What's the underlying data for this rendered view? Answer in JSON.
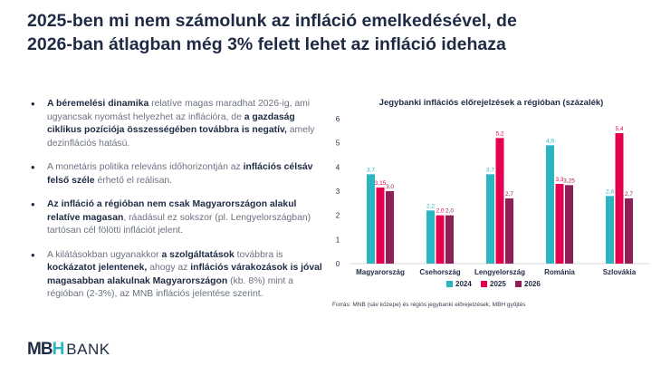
{
  "title_line1": "2025-ben mi nem számolunk az infláció emelkedésével, de",
  "title_line2": "2026-ban átlagban még 3% felett lehet az infláció idehaza",
  "bullets": [
    [
      {
        "t": "A béremelési dinamika",
        "b": true
      },
      {
        "t": " relatíve magas maradhat 2026-ig, ami ugyancsak nyomást helyezhet az inflációra, de ",
        "b": false
      },
      {
        "t": "a gazdaság ciklikus pozíciója összességében továbbra is negatív,",
        "b": true
      },
      {
        "t": " amely dezinflációs hatású.",
        "b": false
      }
    ],
    [
      {
        "t": "A monetáris politika releváns időhorizontján az ",
        "b": false
      },
      {
        "t": "inflációs célsáv felső széle",
        "b": true
      },
      {
        "t": " érhető el reálisan.",
        "b": false
      }
    ],
    [
      {
        "t": "Az infláció a régióban nem csak Magyarországon alakul relatíve magasan",
        "b": true
      },
      {
        "t": ", ráadásul ez sokszor (pl. Lengyelországban) tartósan cél fölötti inflációt jelent.",
        "b": false
      }
    ],
    [
      {
        "t": "A kilátásokban ugyanakkor ",
        "b": false
      },
      {
        "t": "a szolgáltatások",
        "b": true
      },
      {
        "t": " továbbra is ",
        "b": false
      },
      {
        "t": "kockázatot jelentenek,",
        "b": true
      },
      {
        "t": " ahogy az ",
        "b": false
      },
      {
        "t": "inflációs várakozások is jóval magasabban alakulnak Magyarországon",
        "b": true
      },
      {
        "t": " (kb. 8%) mint a régióban (2-3%), az MNB inflációs jelentése szerint.",
        "b": false
      }
    ]
  ],
  "chart_data": {
    "type": "bar",
    "title": "Jegybanki inflációs előrejelzések a régióban (százalék)",
    "categories": [
      "Magyarország",
      "Csehország",
      "Lengyelország",
      "Románia",
      "Szlovákia"
    ],
    "series": [
      {
        "name": "2024",
        "color": "#2bb5c0",
        "values": [
          3.7,
          2.2,
          3.7,
          4.9,
          2.8
        ],
        "labels": [
          "3,7",
          "2,2",
          "3,7",
          "4,9",
          "2,8"
        ]
      },
      {
        "name": "2025",
        "color": "#e4004f",
        "values": [
          3.15,
          2.0,
          5.2,
          3.3,
          5.4
        ],
        "labels": [
          "3,15",
          "2,0",
          "5,2",
          "3,3",
          "5,4"
        ]
      },
      {
        "name": "2026",
        "color": "#8e1f57",
        "values": [
          3.0,
          2.0,
          2.7,
          3.25,
          2.7
        ],
        "labels": [
          "3,0",
          "2,0",
          "2,7",
          "3,25",
          "2,7"
        ]
      }
    ],
    "ylim": [
      0,
      6
    ],
    "yticks": [
      0,
      1,
      2,
      3,
      4,
      5,
      6
    ],
    "grid": false,
    "legend": "bottom"
  },
  "source": "Forrás: MNB (sáv közepe) és régiós jegybanki előrejelzések, MBH gyűjtés",
  "logo": {
    "mark_left": "MB",
    "mark_accent": "H",
    "word": "BANK"
  }
}
